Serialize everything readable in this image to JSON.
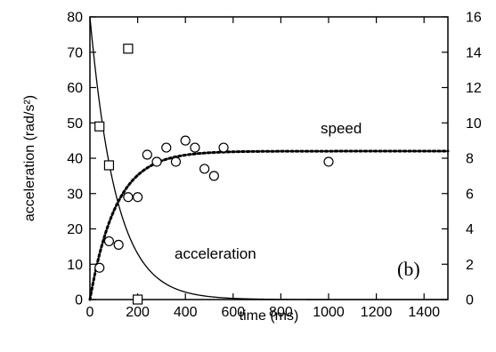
{
  "chart_data": {
    "type": "scatter",
    "title": "",
    "xlabel": "time (ms)",
    "ylabel_left": "acceleration (rad/s²)",
    "ylabel_right": "",
    "xlim": [
      0,
      1500
    ],
    "ylim_left": [
      0,
      80
    ],
    "ylim_right": [
      0,
      16
    ],
    "x_ticks": [
      "0",
      "200",
      "400",
      "600",
      "800",
      "1000",
      "1200",
      "1400"
    ],
    "y_left_ticks": [
      "0",
      "10",
      "20",
      "30",
      "40",
      "50",
      "60",
      "70",
      "80"
    ],
    "y_right_ticks": [
      "0",
      "2",
      "4",
      "6",
      "8",
      "10",
      "12",
      "14",
      "16"
    ],
    "grid": false,
    "annotations": {
      "speed": "speed",
      "acceleration": "acceleration",
      "panel": "(b)"
    },
    "series": [
      {
        "name": "acceleration",
        "kind": "square-markers",
        "axis": "left",
        "x": [
          40,
          80,
          160,
          200
        ],
        "y": [
          49,
          38,
          71,
          0
        ]
      },
      {
        "name": "speed",
        "kind": "circle-markers",
        "axis": "right",
        "x": [
          40,
          80,
          120,
          160,
          200,
          240,
          280,
          320,
          360,
          400,
          440,
          480,
          520,
          560,
          1000
        ],
        "y": [
          1.8,
          3.3,
          3.1,
          5.8,
          5.8,
          8.2,
          7.8,
          8.6,
          7.8,
          9.0,
          8.6,
          7.4,
          7.0,
          8.6,
          7.8
        ]
      },
      {
        "name": "acceleration",
        "kind": "solid-curve",
        "axis": "left",
        "function": "exponential-decay",
        "a0": 80,
        "tau_ms": 110
      },
      {
        "name": "speed",
        "kind": "dotted-curve",
        "axis": "right",
        "function": "exponential-rise",
        "v_max": 8.4,
        "tau_ms": 110
      }
    ]
  }
}
